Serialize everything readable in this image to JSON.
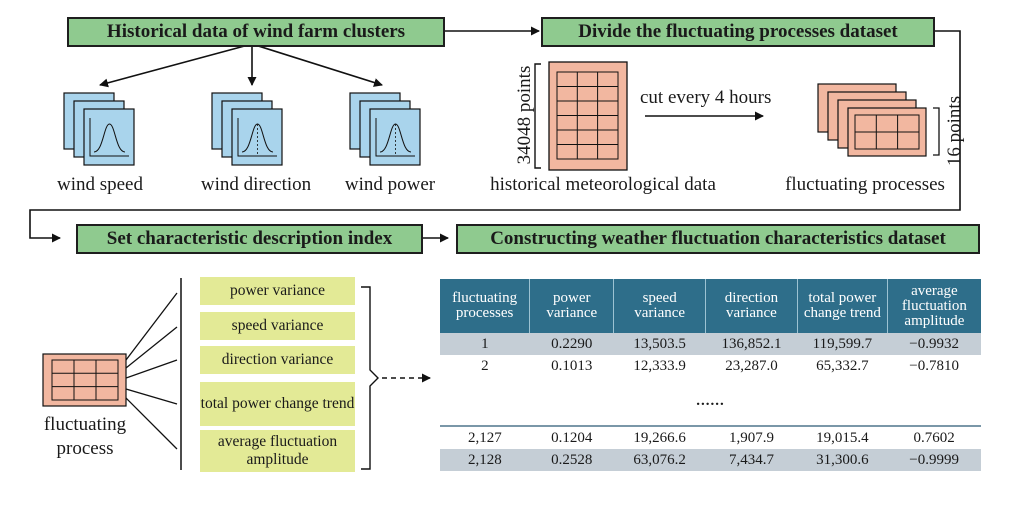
{
  "top_left_box": "Historical data of wind farm clusters",
  "top_right_box": "Divide the fluctuating processes dataset",
  "mid_left_box": "Set characteristic description index",
  "mid_right_box": "Constructing weather fluctuation characteristics dataset",
  "icon_labels": [
    "wind speed",
    "wind direction",
    "wind power"
  ],
  "historical_label": "historical meteorological data",
  "points_left": "34048 points",
  "cut_label": "cut every 4 hours",
  "points_right": "16 points",
  "fluct_label": "fluctuating processes",
  "fp_label_1": "fluctuating",
  "fp_label_2": "process",
  "index_items": [
    "power variance",
    "speed variance",
    "direction variance",
    "total power change trend",
    "average fluctuation amplitude"
  ],
  "table": {
    "headers": [
      "fluctuating processes",
      "power variance",
      "speed variance",
      "direction variance",
      "total power change trend",
      "average fluctuation amplitude"
    ],
    "rows_top": [
      [
        "1",
        "0.2290",
        "13,503.5",
        "136,852.1",
        "119,599.7",
        "−0.9932"
      ],
      [
        "2",
        "0.1013",
        "12,333.9",
        "23,287.0",
        "65,332.7",
        "−0.7810"
      ]
    ],
    "ellipsis": "......",
    "rows_bottom": [
      [
        "2,127",
        "0.1204",
        "19,266.6",
        "1,907.9",
        "19,015.4",
        "0.7602"
      ],
      [
        "2,128",
        "0.2528",
        "63,076.2",
        "7,434.7",
        "31,300.6",
        "−0.9999"
      ]
    ]
  },
  "colors": {
    "green_box": "#8fca8f",
    "yellow_box": "#e3ea96",
    "table_header": "#2e6e8a",
    "salmon": "#f2b7a0",
    "blue_doc": "#a9d4ec"
  }
}
